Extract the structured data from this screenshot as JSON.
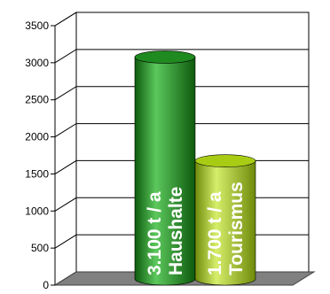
{
  "chart_data": {
    "type": "bar",
    "categories": [
      "3.100 t / a Haushalte",
      "1.700 t / a Tourismus"
    ],
    "values": [
      3100,
      1700
    ],
    "labels": [
      [
        "3.100 t / a",
        "Haushalte"
      ],
      [
        "1.700 t / a",
        "Tourismus"
      ]
    ],
    "title": "",
    "xlabel": "",
    "ylabel": "",
    "ylim": [
      0,
      3500
    ],
    "yticks": [
      "0",
      "500",
      "1000",
      "1500",
      "2000",
      "2500",
      "3000",
      "3500"
    ],
    "grid": true,
    "legend": "none",
    "style": "3d-cylinder"
  },
  "colors": {
    "bar1_base": "#1f8a1f",
    "bar1_dark": "#0d5a0d",
    "bar1_light": "#5cc85c",
    "bar2_base": "#a8cc14",
    "bar2_dark": "#6f8a0a",
    "bar2_light": "#d6ee6a",
    "floor": "#808080",
    "grid": "#000000"
  }
}
